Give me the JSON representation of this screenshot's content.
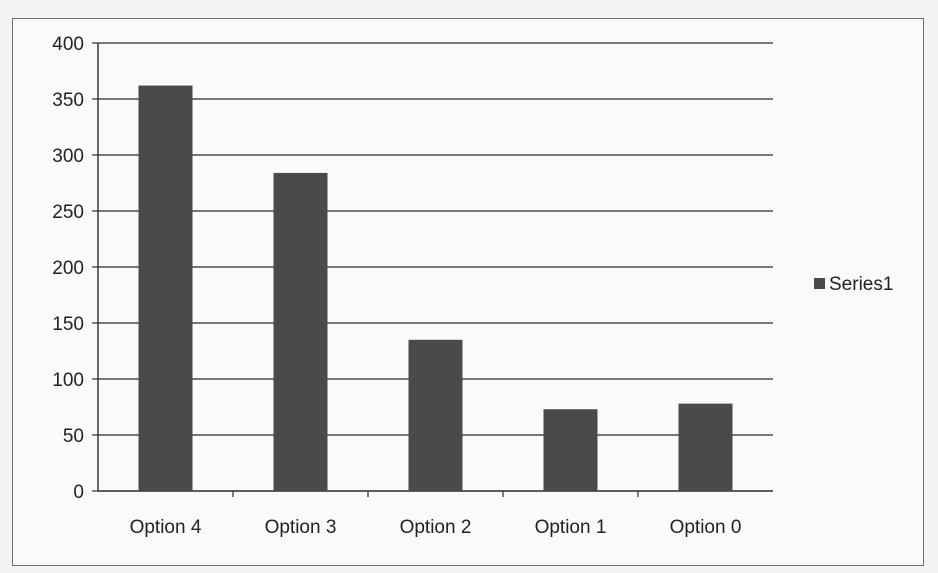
{
  "chart_data": {
    "type": "bar",
    "title": "",
    "xlabel": "",
    "ylabel": "",
    "categories": [
      "Option 4",
      "Option 3",
      "Option 2",
      "Option 1",
      "Option 0"
    ],
    "series": [
      {
        "name": "Series1",
        "values": [
          362,
          284,
          135,
          73,
          78
        ]
      }
    ],
    "ylim": [
      0,
      400
    ],
    "yticks": [
      "0",
      "50",
      "100",
      "150",
      "200",
      "250",
      "300",
      "350",
      "400"
    ],
    "grid": true,
    "legend": "right",
    "colors": {
      "bar": "#4a4a4a",
      "grid": "#2b2b2b",
      "axis": "#2b2b2b"
    }
  }
}
